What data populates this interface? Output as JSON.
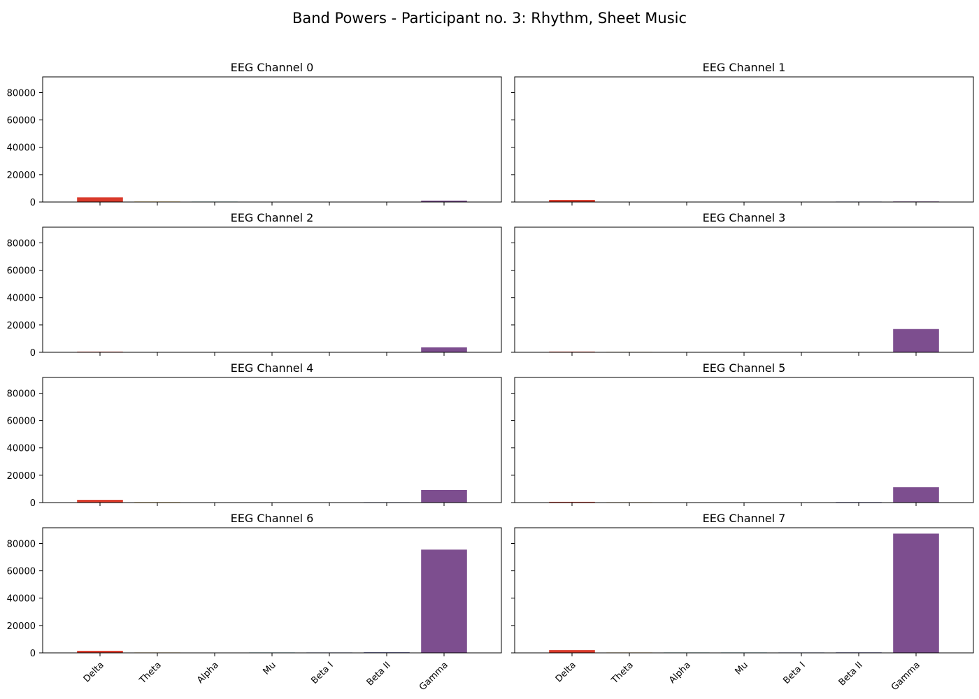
{
  "title": "Band Powers - Participant no. 3: Rhythm, Sheet Music",
  "chart_data": {
    "type": "bar",
    "layout": "4x2 grid, shared y axis",
    "ylim": [
      0,
      91500
    ],
    "yticks": [
      0,
      20000,
      40000,
      60000,
      80000
    ],
    "grid": false,
    "categories": [
      "Delta",
      "Theta",
      "Alpha",
      "Mu",
      "Beta I",
      "Beta II",
      "Gamma"
    ],
    "colors": [
      "#d93a2b",
      "#e8b020",
      "#2a9d8f",
      "#1f9fb4",
      "#3a4fa0",
      "#2b2e8c",
      "#7d4e8f"
    ],
    "panels": [
      {
        "title": "EEG Channel 0",
        "values": [
          3400,
          350,
          300,
          250,
          0,
          0,
          1000
        ]
      },
      {
        "title": "EEG Channel 1",
        "values": [
          1500,
          250,
          0,
          0,
          0,
          300,
          400
        ]
      },
      {
        "title": "EEG Channel 2",
        "values": [
          450,
          0,
          0,
          0,
          0,
          0,
          3600
        ]
      },
      {
        "title": "EEG Channel 3",
        "values": [
          500,
          300,
          0,
          0,
          0,
          0,
          17000
        ]
      },
      {
        "title": "EEG Channel 4",
        "values": [
          2000,
          350,
          0,
          0,
          0,
          300,
          9200
        ]
      },
      {
        "title": "EEG Channel 5",
        "values": [
          550,
          300,
          0,
          0,
          0,
          350,
          11200
        ]
      },
      {
        "title": "EEG Channel 6",
        "values": [
          1500,
          300,
          0,
          300,
          300,
          400,
          75500
        ]
      },
      {
        "title": "EEG Channel 7",
        "values": [
          2000,
          300,
          300,
          300,
          300,
          350,
          87200
        ]
      }
    ]
  }
}
